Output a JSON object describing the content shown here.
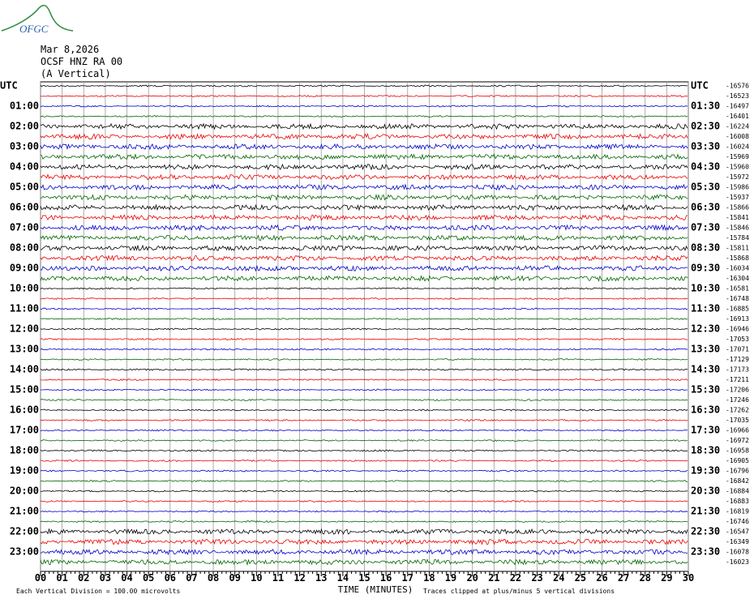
{
  "header": {
    "logo": "OFGC",
    "date": "Mar 8,2026",
    "station": "OCSF HNZ RA 00",
    "component": "(A Vertical)"
  },
  "left_labels": [
    "UTC",
    "01:00",
    "02:00",
    "03:00",
    "04:00",
    "05:00",
    "06:00",
    "07:00",
    "08:00",
    "09:00",
    "10:00",
    "11:00",
    "12:00",
    "13:00",
    "14:00",
    "15:00",
    "16:00",
    "17:00",
    "18:00",
    "19:00",
    "20:00",
    "21:00",
    "22:00",
    "23:00"
  ],
  "right_labels": [
    "UTC",
    "01:30",
    "02:30",
    "03:30",
    "04:30",
    "05:30",
    "06:30",
    "07:30",
    "08:30",
    "09:30",
    "10:30",
    "11:30",
    "12:30",
    "13:30",
    "14:30",
    "15:30",
    "16:30",
    "17:30",
    "18:30",
    "19:30",
    "20:30",
    "21:30",
    "22:30",
    "23:30"
  ],
  "offsets": [
    -16576,
    -16523,
    -16497,
    -16401,
    -16224,
    -16008,
    -16024,
    -15969,
    -15960,
    -15972,
    -15986,
    -15937,
    -15866,
    -15841,
    -15846,
    -15784,
    -15811,
    -15868,
    -16034,
    -16304,
    -16581,
    -16748,
    -16885,
    -16913,
    -16946,
    -17053,
    -17071,
    -17129,
    -17173,
    -17211,
    -17206,
    -17246,
    -17262,
    -17035,
    -16966,
    -16972,
    -16958,
    -16905,
    -16796,
    -16842,
    -16884,
    -16883,
    -16819,
    -16746,
    -16547,
    -16349,
    -16078,
    -16023
  ],
  "x_ticks": [
    "00",
    "01",
    "02",
    "03",
    "04",
    "05",
    "06",
    "07",
    "08",
    "09",
    "10",
    "11",
    "12",
    "13",
    "14",
    "15",
    "16",
    "17",
    "18",
    "19",
    "20",
    "21",
    "22",
    "23",
    "24",
    "25",
    "26",
    "27",
    "28",
    "29",
    "30"
  ],
  "footer": {
    "division": "Each Vertical Division =  100.00 microvolts",
    "axis_title": "TIME (MINUTES)",
    "clip_note": "Traces clipped at plus/minus 5 vertical divisions"
  }
}
